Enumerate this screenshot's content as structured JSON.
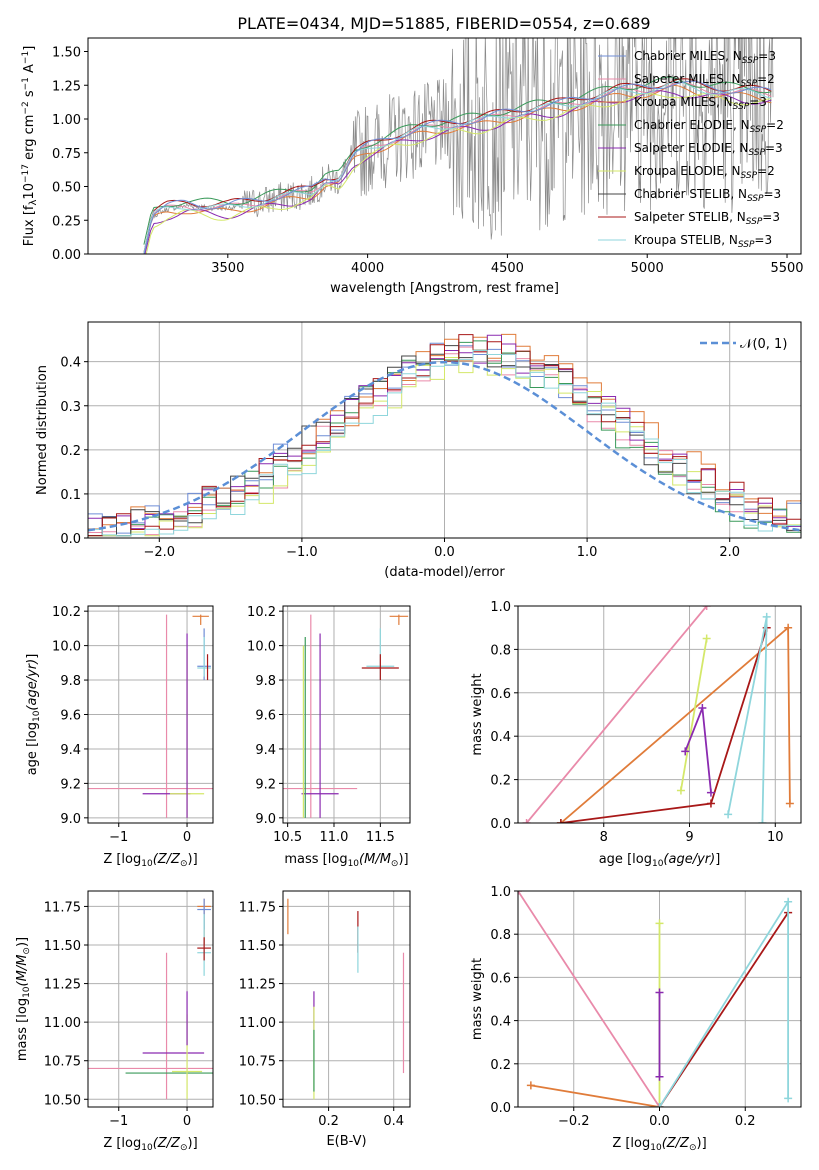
{
  "figure": {
    "title": "PLATE=0434, MJD=51885, FIBERID=0554, z=0.689",
    "colors": [
      "#6f8dd6",
      "#e98aaa",
      "#e07c3a",
      "#3a9a5a",
      "#8a2ab0",
      "#d4e86a",
      "#444444",
      "#a81818",
      "#8fd6dc"
    ]
  },
  "chart_data": [
    {
      "id": "spectrum",
      "type": "line",
      "title": "PLATE=0434, MJD=51885, FIBERID=0554, z=0.689",
      "xlabel": "wavelength [Angstrom, rest frame]",
      "ylabel": "Flux [f_λ 10^-17 erg cm^-2 s^-1 A^-1]",
      "xlim": [
        3000,
        5550
      ],
      "ylim": [
        0,
        1.6
      ],
      "xticks": [
        3500,
        4000,
        4500,
        5000,
        5500
      ],
      "yticks": [
        0.0,
        0.25,
        0.5,
        0.75,
        1.0,
        1.25,
        1.5
      ],
      "grid": false,
      "legend_position": "top-right",
      "legend": [
        "Chabrier MILES, N_SSP=3",
        "Salpeter MILES, N_SSP=2",
        "Kroupa MILES, N_SSP=3",
        "Chabrier ELODIE, N_SSP=2",
        "Salpeter ELODIE, N_SSP=3",
        "Kroupa ELODIE, N_SSP=2",
        "Chabrier STELIB, N_SSP=3",
        "Salpeter STELIB, N_SSP=3",
        "Kroupa STELIB, N_SSP=3"
      ],
      "data_points": {
        "x": [
          3200,
          3230,
          3280,
          3350,
          3450,
          3500,
          3600,
          3700,
          3800,
          3850,
          3900,
          3950,
          4000,
          4100,
          4200,
          4300,
          4400,
          4500,
          4600,
          4700,
          4800,
          4900,
          5000,
          5100,
          5200,
          5300,
          5450
        ],
        "y": [
          0.0,
          0.28,
          0.33,
          0.36,
          0.34,
          0.34,
          0.38,
          0.42,
          0.46,
          0.55,
          0.55,
          0.72,
          0.78,
          0.86,
          0.92,
          0.96,
          0.98,
          1.03,
          1.07,
          1.1,
          1.15,
          1.2,
          1.22,
          1.25,
          1.22,
          1.2,
          1.18
        ]
      }
    },
    {
      "id": "residuals",
      "type": "line",
      "xlabel": "(data-model)/error",
      "ylabel": "Normed distribution",
      "xlim": [
        -2.5,
        2.5
      ],
      "ylim": [
        0,
        0.49
      ],
      "xticks": [
        -2,
        -1,
        0,
        1,
        2
      ],
      "yticks": [
        0.0,
        0.1,
        0.2,
        0.3,
        0.4
      ],
      "grid": true,
      "legend_position": "top-right",
      "legend": [
        "𝒩(0, 1)"
      ],
      "reference_curve": "normal(0,1)",
      "hist_offsets": [
        0.012,
        -0.01,
        0.018,
        -0.006,
        0.008,
        -0.015,
        0.004,
        0.014,
        -0.012
      ]
    },
    {
      "id": "age_vs_Z",
      "type": "scatter",
      "xlabel": "Z [log10(Z/Z_sun)]",
      "ylabel": "age [log10(age/yr)]",
      "xlim": [
        -1.45,
        0.38
      ],
      "ylim": [
        8.97,
        10.23
      ],
      "xticks": [
        -1,
        0
      ],
      "yticks": [
        9.0,
        9.2,
        9.4,
        9.6,
        9.8,
        10.0,
        10.2
      ],
      "grid": true,
      "errorbars": [
        {
          "c": 1,
          "x": -0.3,
          "y": 9.17,
          "xe": 1.15,
          "ylo": 9.0,
          "yhi": 10.18
        },
        {
          "c": 4,
          "x": -0.3,
          "y": 9.14,
          "xe": 0.35,
          "ylo": 9.14,
          "yhi": 9.14
        },
        {
          "c": 5,
          "x": 0.0,
          "y": 9.14,
          "xe": 0.25,
          "ylo": 9.0,
          "yhi": 9.98
        },
        {
          "c": 4,
          "x": 0.0,
          "y": 9.5,
          "xe": 0.0,
          "ylo": 9.0,
          "yhi": 10.07
        },
        {
          "c": 2,
          "x": 0.2,
          "y": 10.17,
          "xe": 0.12,
          "ylo": 10.12,
          "yhi": 10.18
        },
        {
          "c": 0,
          "x": 0.25,
          "y": 9.88,
          "xe": 0.1,
          "ylo": 9.8,
          "yhi": 10.1
        },
        {
          "c": 8,
          "x": 0.25,
          "y": 9.87,
          "xe": 0.1,
          "ylo": 9.82,
          "yhi": 10.05
        },
        {
          "c": 7,
          "x": 0.3,
          "y": 9.86,
          "xe": 0.0,
          "ylo": 9.8,
          "yhi": 9.95
        }
      ]
    },
    {
      "id": "age_vs_mass",
      "type": "scatter",
      "xlabel": "mass [log10(M/M_sun)]",
      "ylabel": "",
      "xlim": [
        10.45,
        11.82
      ],
      "ylim": [
        8.97,
        10.23
      ],
      "xticks": [
        10.5,
        11.0,
        11.5
      ],
      "yticks": [
        9.0,
        9.2,
        9.4,
        9.6,
        9.8,
        10.0,
        10.2
      ],
      "grid": true,
      "errorbars": [
        {
          "c": 1,
          "x": 10.75,
          "y": 9.17,
          "xe": 0.5,
          "ylo": 9.0,
          "yhi": 10.18
        },
        {
          "c": 4,
          "x": 10.85,
          "y": 9.14,
          "xe": 0.2,
          "ylo": 9.0,
          "yhi": 10.07
        },
        {
          "c": 5,
          "x": 10.67,
          "y": 9.14,
          "xe": 0.0,
          "ylo": 9.0,
          "yhi": 10.0
        },
        {
          "c": 3,
          "x": 10.69,
          "y": 9.14,
          "xe": 0.0,
          "ylo": 9.0,
          "yhi": 10.05
        },
        {
          "c": 8,
          "x": 11.5,
          "y": 9.88,
          "xe": 0.15,
          "ylo": 9.8,
          "yhi": 10.1
        },
        {
          "c": 7,
          "x": 11.5,
          "y": 9.87,
          "xe": 0.2,
          "ylo": 9.8,
          "yhi": 9.95
        },
        {
          "c": 2,
          "x": 11.7,
          "y": 10.17,
          "xe": 0.1,
          "ylo": 10.12,
          "yhi": 10.18
        }
      ]
    },
    {
      "id": "weight_vs_age",
      "type": "line",
      "xlabel": "age [log10(age/yr)]",
      "ylabel": "mass weight",
      "xlim": [
        7.0,
        10.3
      ],
      "ylim": [
        0.0,
        1.0
      ],
      "xticks": [
        8,
        9,
        10
      ],
      "yticks": [
        0.0,
        0.2,
        0.4,
        0.6,
        0.8,
        1.0
      ],
      "grid": true,
      "series": [
        {
          "c": 1,
          "x": [
            7.1,
            9.2
          ],
          "y": [
            0.0,
            1.0
          ]
        },
        {
          "c": 2,
          "x": [
            7.5,
            10.15,
            10.17
          ],
          "y": [
            0.0,
            0.9,
            0.09
          ]
        },
        {
          "c": 7,
          "x": [
            7.5,
            9.25,
            9.9
          ],
          "y": [
            0.0,
            0.09,
            0.9
          ]
        },
        {
          "c": 8,
          "x": [
            9.45,
            9.9,
            9.85
          ],
          "y": [
            0.04,
            0.95,
            0.0
          ]
        },
        {
          "c": 5,
          "x": [
            8.9,
            9.2
          ],
          "y": [
            0.15,
            0.85
          ]
        },
        {
          "c": 4,
          "x": [
            8.95,
            9.15,
            9.25
          ],
          "y": [
            0.33,
            0.53,
            0.14
          ]
        }
      ]
    },
    {
      "id": "mass_vs_Z",
      "type": "scatter",
      "xlabel": "Z [log10(Z/Z_sun)]",
      "ylabel": "mass [log10(M/M_sun)]",
      "xlim": [
        -1.45,
        0.38
      ],
      "ylim": [
        10.45,
        11.85
      ],
      "xticks": [
        -1,
        0
      ],
      "yticks": [
        10.5,
        10.75,
        11.0,
        11.25,
        11.5,
        11.75
      ],
      "grid": true,
      "errorbars": [
        {
          "c": 1,
          "x": -0.3,
          "y": 10.7,
          "xe": 1.15,
          "ylo": 10.5,
          "yhi": 11.45
        },
        {
          "c": 4,
          "x": -0.2,
          "y": 10.8,
          "xe": 0.45,
          "ylo": 10.8,
          "yhi": 10.8
        },
        {
          "c": 3,
          "x": -0.2,
          "y": 10.67,
          "xe": 0.7,
          "ylo": 10.67,
          "yhi": 10.67
        },
        {
          "c": 5,
          "x": 0.0,
          "y": 10.68,
          "xe": 0.22,
          "ylo": 10.5,
          "yhi": 11.05
        },
        {
          "c": 4,
          "x": 0.0,
          "y": 11.0,
          "xe": 0.0,
          "ylo": 10.85,
          "yhi": 11.2
        },
        {
          "c": 2,
          "x": 0.25,
          "y": 11.75,
          "xe": 0.1,
          "ylo": 11.5,
          "yhi": 11.8
        },
        {
          "c": 0,
          "x": 0.25,
          "y": 11.73,
          "xe": 0.1,
          "ylo": 11.6,
          "yhi": 11.8
        },
        {
          "c": 8,
          "x": 0.25,
          "y": 11.45,
          "xe": 0.1,
          "ylo": 11.3,
          "yhi": 11.7
        },
        {
          "c": 7,
          "x": 0.25,
          "y": 11.48,
          "xe": 0.1,
          "ylo": 11.4,
          "yhi": 11.55
        }
      ]
    },
    {
      "id": "mass_vs_ebv",
      "type": "scatter",
      "xlabel": "E(B-V)",
      "ylabel": "",
      "xlim": [
        0.06,
        0.45
      ],
      "ylim": [
        10.45,
        11.85
      ],
      "xticks": [
        0.2,
        0.4
      ],
      "yticks": [
        10.5,
        10.75,
        11.0,
        11.25,
        11.5,
        11.75
      ],
      "grid": true,
      "errorbars": [
        {
          "c": 2,
          "x": 0.075,
          "y": 11.7,
          "xe": 0.0,
          "ylo": 11.57,
          "yhi": 11.8
        },
        {
          "c": 7,
          "x": 0.29,
          "y": 11.58,
          "xe": 0.0,
          "ylo": 11.45,
          "yhi": 11.72
        },
        {
          "c": 8,
          "x": 0.29,
          "y": 11.48,
          "xe": 0.0,
          "ylo": 11.32,
          "yhi": 11.62
        },
        {
          "c": 4,
          "x": 0.155,
          "y": 11.05,
          "xe": 0.0,
          "ylo": 10.95,
          "yhi": 11.2
        },
        {
          "c": 5,
          "x": 0.155,
          "y": 10.8,
          "xe": 0.0,
          "ylo": 10.5,
          "yhi": 11.1
        },
        {
          "c": 3,
          "x": 0.155,
          "y": 10.75,
          "xe": 0.0,
          "ylo": 10.55,
          "yhi": 10.95
        },
        {
          "c": 1,
          "x": 0.43,
          "y": 11.1,
          "xe": 0.0,
          "ylo": 10.67,
          "yhi": 11.45
        }
      ]
    },
    {
      "id": "weight_vs_Z",
      "type": "line",
      "xlabel": "Z [log10(Z/Z_sun)]",
      "ylabel": "mass weight",
      "xlim": [
        -0.33,
        0.33
      ],
      "ylim": [
        0.0,
        1.0
      ],
      "xticks": [
        -0.2,
        0.0,
        0.2
      ],
      "yticks": [
        0.0,
        0.2,
        0.4,
        0.6,
        0.8,
        1.0
      ],
      "grid": true,
      "series": [
        {
          "c": 1,
          "x": [
            -0.33,
            0.0
          ],
          "y": [
            1.0,
            0.0
          ]
        },
        {
          "c": 2,
          "x": [
            -0.3,
            0.0
          ],
          "y": [
            0.1,
            0.0
          ]
        },
        {
          "c": 5,
          "x": [
            0.0,
            0.0
          ],
          "y": [
            0.0,
            0.85
          ]
        },
        {
          "c": 7,
          "x": [
            0.0,
            0.3
          ],
          "y": [
            0.0,
            0.9
          ]
        },
        {
          "c": 8,
          "x": [
            0.0,
            0.3,
            0.3
          ],
          "y": [
            0.0,
            0.95,
            0.04
          ]
        },
        {
          "c": 4,
          "x": [
            0.0,
            0.0
          ],
          "y": [
            0.14,
            0.53
          ]
        }
      ]
    }
  ]
}
